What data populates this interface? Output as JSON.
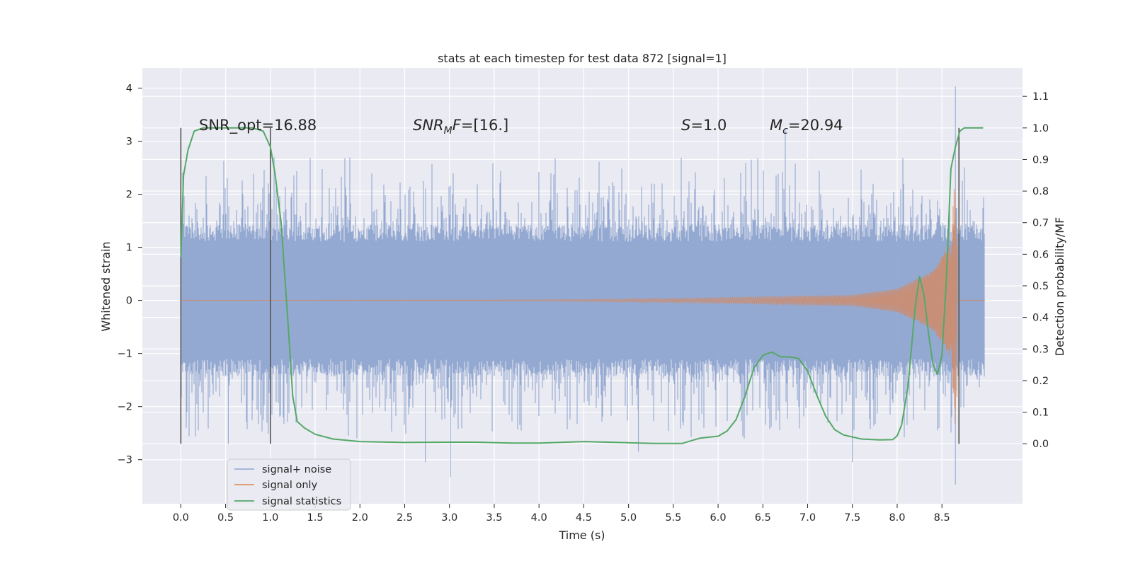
{
  "chart_data": {
    "type": "line",
    "title": "stats at each timestep for test data 872 [signal=1]",
    "xlabel": "Time (s)",
    "ylabel_left": "Whitened strain",
    "ylabel_right": "Detection probability/MF",
    "xlim": [
      -0.43,
      9.4
    ],
    "ylim_left": [
      -3.83,
      4.38
    ],
    "ylim_right": [
      -0.19,
      1.19
    ],
    "x_ticks": [
      "0.0",
      "0.5",
      "1.0",
      "1.5",
      "2.0",
      "2.5",
      "3.0",
      "3.5",
      "4.0",
      "4.5",
      "5.0",
      "5.5",
      "6.0",
      "6.5",
      "7.0",
      "7.5",
      "8.0",
      "8.5"
    ],
    "y_left_ticks": [
      "4",
      "3",
      "2",
      "1",
      "0",
      "−1",
      "−2",
      "−3"
    ],
    "y_right_ticks": [
      "1.1",
      "1.0",
      "0.9",
      "0.8",
      "0.7",
      "0.6",
      "0.5",
      "0.4",
      "0.3",
      "0.2",
      "0.1",
      "0.0"
    ],
    "grid": true,
    "legend_position": "lower-left",
    "annotations": {
      "snr_opt": "SNR_opt=16.88",
      "snr_mf_italic": "SNR",
      "snr_mf_sub": "M",
      "snr_mf_rest_italic": "F",
      "snr_mf_value": "=[16.]",
      "s_italic": "S",
      "s_value": "=1.0",
      "mc_italic": "M",
      "mc_sub": "c",
      "mc_value": "=20.94"
    },
    "vertical_markers": [
      0.0,
      1.0,
      8.69
    ],
    "series": [
      {
        "name": "signal+ noise",
        "color": "#8fa5cf",
        "axis": "left",
        "x_range": [
          0.0,
          8.98
        ],
        "typical_envelope": [
          -1.3,
          1.3
        ],
        "max": 4.03,
        "min": -3.47,
        "spikes": [
          [
            2.73,
            -3.05
          ],
          [
            3.01,
            -3.33
          ],
          [
            6.75,
            3.25
          ],
          [
            8.65,
            4.03
          ],
          [
            8.65,
            -3.47
          ],
          [
            0.53,
            -2.7
          ],
          [
            5.11,
            -2.85
          ],
          [
            7.5,
            -3.05
          ]
        ]
      },
      {
        "name": "signal only",
        "color": "#dd8452",
        "axis": "left",
        "description_points": [
          [
            0.0,
            0.0
          ],
          [
            4.0,
            0.01
          ],
          [
            6.0,
            0.05
          ],
          [
            7.5,
            0.1
          ],
          [
            8.0,
            0.22
          ],
          [
            8.4,
            0.55
          ],
          [
            8.6,
            1.1
          ],
          [
            8.65,
            2.5
          ],
          [
            8.67,
            -3.1
          ]
        ]
      },
      {
        "name": "signal statistics",
        "color": "#55a868",
        "axis": "right",
        "x": [
          0.0,
          0.03,
          0.08,
          0.15,
          0.25,
          0.4,
          0.6,
          0.8,
          0.92,
          1.0,
          1.05,
          1.12,
          1.2,
          1.25,
          1.3,
          1.38,
          1.5,
          1.7,
          2.0,
          2.5,
          3.0,
          3.3,
          3.7,
          4.0,
          4.5,
          5.0,
          5.3,
          5.6,
          5.8,
          6.0,
          6.1,
          6.2,
          6.3,
          6.4,
          6.5,
          6.6,
          6.7,
          6.8,
          6.9,
          7.0,
          7.1,
          7.2,
          7.3,
          7.4,
          7.6,
          7.8,
          7.95,
          8.0,
          8.05,
          8.12,
          8.2,
          8.25,
          8.3,
          8.35,
          8.4,
          8.45,
          8.5,
          8.55,
          8.6,
          8.65,
          8.7,
          8.75,
          8.8,
          8.88,
          8.96
        ],
        "values": [
          0.59,
          0.85,
          0.93,
          0.99,
          1.0,
          1.0,
          1.0,
          1.0,
          0.99,
          0.94,
          0.86,
          0.7,
          0.37,
          0.15,
          0.07,
          0.05,
          0.03,
          0.015,
          0.007,
          0.004,
          0.005,
          0.005,
          0.002,
          0.002,
          0.007,
          0.003,
          0.001,
          0.001,
          0.018,
          0.024,
          0.04,
          0.076,
          0.15,
          0.24,
          0.28,
          0.29,
          0.275,
          0.275,
          0.27,
          0.23,
          0.155,
          0.088,
          0.045,
          0.028,
          0.015,
          0.012,
          0.013,
          0.025,
          0.06,
          0.18,
          0.43,
          0.53,
          0.47,
          0.35,
          0.25,
          0.22,
          0.28,
          0.52,
          0.87,
          0.94,
          0.99,
          1.0,
          1.0,
          1.0,
          1.0
        ]
      }
    ]
  }
}
